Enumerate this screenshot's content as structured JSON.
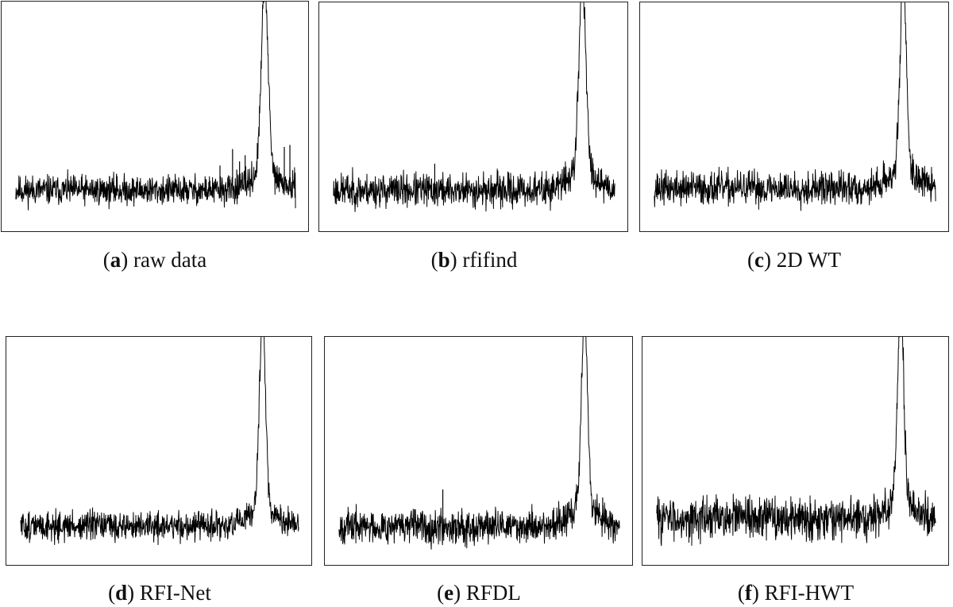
{
  "chart_data": [
    {
      "type": "line",
      "caption_letter": "a",
      "caption_text": "raw data",
      "x_range": [
        0,
        1
      ],
      "y_range": [
        0,
        1
      ],
      "baseline": 0.13,
      "noise_amplitude": 0.035,
      "peak": {
        "center": 0.89,
        "height": 0.93,
        "width": 0.012,
        "wing_height": 0.08,
        "wing_width": 0.05
      },
      "spikes": [
        {
          "x": 0.36,
          "height": 0.21
        },
        {
          "x": 0.29,
          "height": 0.12
        },
        {
          "x": 0.19,
          "height": 0.14
        },
        {
          "x": 0.69,
          "height": 0.17
        },
        {
          "x": 0.73,
          "height": 0.25
        },
        {
          "x": 0.775,
          "height": 0.33
        },
        {
          "x": 0.79,
          "height": 0.23
        },
        {
          "x": 0.8,
          "height": 0.27
        },
        {
          "x": 0.82,
          "height": 0.3
        },
        {
          "x": 0.96,
          "height": 0.34
        },
        {
          "x": 0.98,
          "height": 0.35
        }
      ],
      "seed": 11
    },
    {
      "type": "line",
      "caption_letter": "b",
      "caption_text": "rfifind",
      "x_range": [
        0,
        1
      ],
      "y_range": [
        0,
        1
      ],
      "baseline": 0.13,
      "noise_amplitude": 0.04,
      "peak": {
        "center": 0.885,
        "height": 0.93,
        "width": 0.012,
        "wing_height": 0.1,
        "wing_width": 0.05
      },
      "spikes": [
        {
          "x": 0.36,
          "height": 0.26
        },
        {
          "x": 0.82,
          "height": 0.24
        },
        {
          "x": 0.95,
          "height": 0.23
        }
      ],
      "seed": 23
    },
    {
      "type": "line",
      "caption_letter": "c",
      "caption_text": "2D WT",
      "x_range": [
        0,
        1
      ],
      "y_range": [
        0,
        1
      ],
      "baseline": 0.14,
      "noise_amplitude": 0.04,
      "peak": {
        "center": 0.885,
        "height": 0.94,
        "width": 0.011,
        "wing_height": 0.09,
        "wing_width": 0.05
      },
      "spikes": [],
      "seed": 37
    },
    {
      "type": "line",
      "caption_letter": "d",
      "caption_text": "RFI-Net",
      "x_range": [
        0,
        1
      ],
      "y_range": [
        0,
        1
      ],
      "baseline": 0.12,
      "noise_amplitude": 0.035,
      "peak": {
        "center": 0.87,
        "height": 0.93,
        "width": 0.011,
        "wing_height": 0.09,
        "wing_width": 0.045
      },
      "spikes": [],
      "seed": 51
    },
    {
      "type": "line",
      "caption_letter": "e",
      "caption_text": "RFDL",
      "x_range": [
        0,
        1
      ],
      "y_range": [
        0,
        1
      ],
      "baseline": 0.12,
      "noise_amplitude": 0.04,
      "peak": {
        "center": 0.875,
        "height": 0.93,
        "width": 0.011,
        "wing_height": 0.09,
        "wing_width": 0.05
      },
      "spikes": [
        {
          "x": 0.37,
          "height": 0.3
        },
        {
          "x": 0.8,
          "height": 0.22
        },
        {
          "x": 0.94,
          "height": 0.26
        }
      ],
      "seed": 67
    },
    {
      "type": "line",
      "caption_letter": "f",
      "caption_text": "RFI-HWT",
      "x_range": [
        0,
        1
      ],
      "y_range": [
        0,
        1
      ],
      "baseline": 0.16,
      "noise_amplitude": 0.05,
      "peak": {
        "center": 0.875,
        "height": 0.95,
        "width": 0.011,
        "wing_height": 0.09,
        "wing_width": 0.045
      },
      "spikes": [],
      "seed": 83
    }
  ],
  "captions": [
    {
      "letter": "a",
      "text": "raw data"
    },
    {
      "letter": "b",
      "text": "rfifind"
    },
    {
      "letter": "c",
      "text": "2D WT"
    },
    {
      "letter": "d",
      "text": "RFI-Net"
    },
    {
      "letter": "e",
      "text": "RFDL"
    },
    {
      "letter": "f",
      "text": "RFI-HWT"
    }
  ]
}
